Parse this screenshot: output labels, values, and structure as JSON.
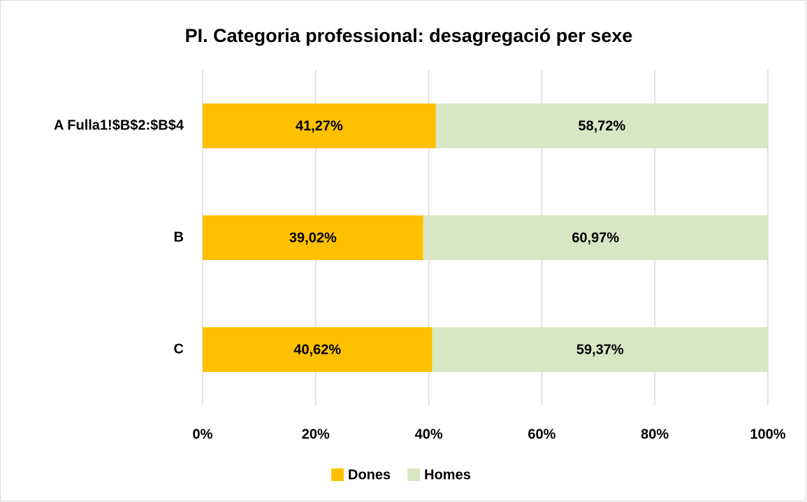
{
  "chart_data": {
    "type": "stacked-barh",
    "title": "PI. Categoria professional: desagregació per sexe",
    "categories": [
      "A Fulla1!$B$2:$B$4",
      "B",
      "C"
    ],
    "series": [
      {
        "name": "Dones",
        "color": "#ffc000",
        "values": [
          41.27,
          39.02,
          40.62
        ],
        "value_labels": [
          "41,27%",
          "39,02%",
          "40,62%"
        ]
      },
      {
        "name": "Homes",
        "color": "#d9e6c4",
        "values": [
          58.72,
          60.97,
          59.37
        ],
        "value_labels": [
          "58,72%",
          "60,97%",
          "59,37%"
        ]
      }
    ],
    "xlim": [
      0,
      100
    ],
    "xticks": [
      {
        "value": 0,
        "label": "0%"
      },
      {
        "value": 20,
        "label": "20%"
      },
      {
        "value": 40,
        "label": "40%"
      },
      {
        "value": 60,
        "label": "60%"
      },
      {
        "value": 80,
        "label": "80%"
      },
      {
        "value": 100,
        "label": "100%"
      }
    ],
    "grid": true,
    "legend": "bottom"
  }
}
